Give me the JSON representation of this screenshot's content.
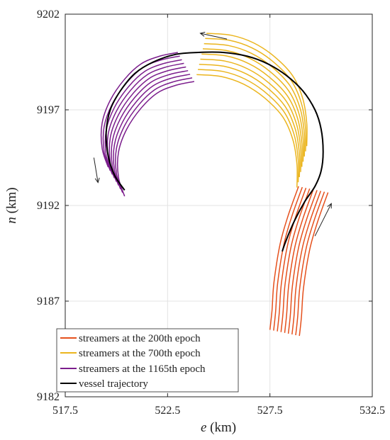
{
  "chart_data": {
    "type": "line",
    "xlabel": {
      "symbol": "e",
      "unit": " (km)"
    },
    "ylabel": {
      "symbol": "n",
      "unit": " (km)"
    },
    "xlim": [
      517.5,
      532.5
    ],
    "ylim": [
      9182,
      9202
    ],
    "xticks": [
      517.5,
      522.5,
      527.5,
      532.5
    ],
    "yticks": [
      9182,
      9187,
      9192,
      9197,
      9202
    ],
    "xtick_labels": [
      "517.5",
      "522.5",
      "527.5",
      "532.5"
    ],
    "ytick_labels": [
      "9182",
      "9187",
      "9192",
      "9197",
      "9202"
    ],
    "grid": true,
    "legend_position": "bottom-left",
    "series": [
      {
        "name": "streamers at the 200th epoch",
        "color": "#e5501c"
      },
      {
        "name": "streamers at the 700th epoch",
        "color": "#ebb51e"
      },
      {
        "name": "streamers at the 1165th epoch",
        "color": "#7b1d8c"
      },
      {
        "name": "vessel trajectory",
        "color": "#000000"
      }
    ],
    "vessel_trajectory": [
      [
        520.4,
        9192.8
      ],
      [
        519.9,
        9193.6
      ],
      [
        519.6,
        9194.6
      ],
      [
        519.5,
        9195.8
      ],
      [
        519.7,
        9197.0
      ],
      [
        520.2,
        9198.0
      ],
      [
        520.9,
        9198.9
      ],
      [
        521.8,
        9199.5
      ],
      [
        522.9,
        9199.9
      ],
      [
        524.0,
        9200.0
      ],
      [
        525.2,
        9200.0
      ],
      [
        526.4,
        9199.8
      ],
      [
        527.4,
        9199.4
      ],
      [
        528.3,
        9198.8
      ],
      [
        529.1,
        9198.0
      ],
      [
        529.7,
        9197.0
      ],
      [
        530.0,
        9196.0
      ],
      [
        530.1,
        9194.8
      ],
      [
        530.0,
        9193.8
      ],
      [
        529.7,
        9193.0
      ],
      [
        529.2,
        9192.2
      ],
      [
        528.7,
        9191.2
      ],
      [
        528.3,
        9190.2
      ],
      [
        528.1,
        9189.6
      ]
    ],
    "streamers_200th_epoch": {
      "count": 9,
      "first_streamer": [
        [
          528.9,
          9193.0
        ],
        [
          528.4,
          9191.5
        ],
        [
          528.0,
          9190.0
        ],
        [
          527.7,
          9188.0
        ],
        [
          527.6,
          9186.5
        ],
        [
          527.5,
          9185.5
        ]
      ],
      "step": [
        0.18,
        -0.04
      ]
    },
    "streamers_700th_epoch": {
      "count": 9,
      "first_streamer": [
        [
          524.4,
          9201.0
        ],
        [
          525.6,
          9200.9
        ],
        [
          526.7,
          9200.5
        ],
        [
          527.7,
          9199.8
        ],
        [
          528.6,
          9198.8
        ],
        [
          529.1,
          9197.6
        ],
        [
          529.3,
          9196.3
        ],
        [
          529.3,
          9195.1
        ]
      ],
      "step": [
        -0.06,
        -0.27
      ]
    },
    "streamers_1165th_epoch": {
      "count": 9,
      "first_streamer": [
        [
          519.6,
          9194.0
        ],
        [
          519.3,
          9195.0
        ],
        [
          519.3,
          9196.3
        ],
        [
          519.7,
          9197.5
        ],
        [
          520.4,
          9198.6
        ],
        [
          521.2,
          9199.4
        ],
        [
          522.1,
          9199.8
        ],
        [
          523.0,
          9200.0
        ]
      ],
      "step": [
        0.1,
        -0.19
      ]
    },
    "direction_arrows": [
      {
        "from": [
          525.4,
          9200.7
        ],
        "to": [
          524.1,
          9201.0
        ]
      },
      {
        "from": [
          518.9,
          9194.5
        ],
        "to": [
          519.1,
          9193.2
        ]
      },
      {
        "from": [
          529.7,
          9190.4
        ],
        "to": [
          530.5,
          9192.1
        ]
      }
    ]
  }
}
